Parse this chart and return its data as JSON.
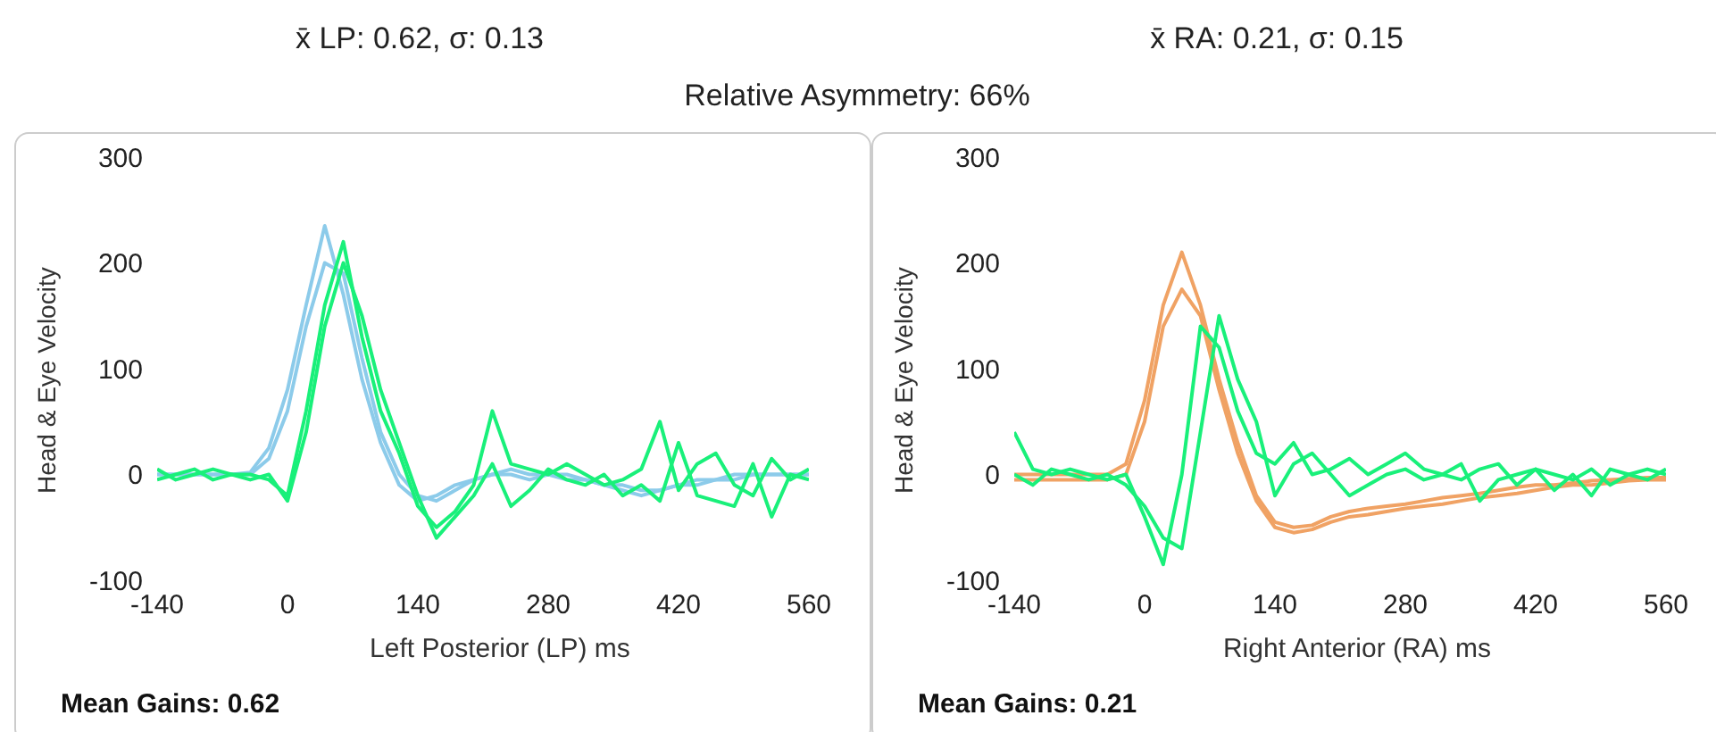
{
  "chart_data": [
    {
      "type": "line",
      "title": "x̄ LP: 0.62, σ: 0.13",
      "xlabel": "Left Posterior (LP) ms",
      "ylabel": "Head & Eye Velocity",
      "annotations": [
        "Relative Asymmetry: 66%",
        "Mean Gains: 0.62"
      ],
      "marker": "none",
      "line_style": "solid",
      "x": [
        -140,
        -120,
        -100,
        -80,
        -60,
        -40,
        -20,
        0,
        20,
        40,
        60,
        80,
        100,
        120,
        140,
        160,
        180,
        200,
        220,
        240,
        260,
        280,
        300,
        320,
        340,
        360,
        380,
        400,
        420,
        440,
        460,
        480,
        500,
        520,
        540,
        560
      ],
      "xlim": [
        -140,
        560
      ],
      "xticks": [
        -140,
        0,
        140,
        280,
        420,
        560
      ],
      "ylim": [
        -100,
        300
      ],
      "yticks": [
        -100,
        0,
        100,
        200,
        300
      ],
      "series": [
        {
          "color": "#8ccbea",
          "values": [
            0,
            0,
            0,
            0,
            0,
            2,
            25,
            80,
            160,
            235,
            170,
            90,
            30,
            -10,
            -25,
            -20,
            -10,
            -5,
            0,
            0,
            -5,
            0,
            0,
            -5,
            -10,
            -10,
            -15,
            -15,
            -10,
            -10,
            -5,
            -5,
            0,
            0,
            0,
            0
          ]
        },
        {
          "color": "#8ccbea",
          "values": [
            0,
            0,
            0,
            0,
            0,
            0,
            15,
            60,
            140,
            200,
            190,
            110,
            40,
            0,
            -20,
            -25,
            -15,
            -5,
            0,
            5,
            0,
            0,
            -5,
            -5,
            -10,
            -15,
            -20,
            -15,
            -10,
            -5,
            -5,
            0,
            0,
            0,
            0,
            0
          ]
        },
        {
          "color": "#19f07a",
          "values": [
            5,
            -5,
            0,
            5,
            0,
            0,
            -5,
            -20,
            60,
            160,
            220,
            130,
            60,
            20,
            -30,
            -50,
            -35,
            -10,
            60,
            10,
            5,
            0,
            10,
            0,
            -10,
            -5,
            5,
            50,
            -15,
            10,
            20,
            -10,
            -20,
            15,
            -5,
            5
          ]
        },
        {
          "color": "#19f07a",
          "values": [
            -5,
            0,
            5,
            -5,
            0,
            -5,
            0,
            -25,
            40,
            140,
            200,
            150,
            80,
            30,
            -20,
            -60,
            -40,
            -20,
            10,
            -30,
            -15,
            5,
            -5,
            -10,
            0,
            -20,
            -10,
            -25,
            30,
            -20,
            -25,
            -30,
            10,
            -40,
            0,
            -5
          ]
        }
      ]
    },
    {
      "type": "line",
      "title": "x̄ RA: 0.21, σ: 0.15",
      "xlabel": "Right Anterior (RA) ms",
      "ylabel": "Head & Eye Velocity",
      "annotations": [
        "Mean Gains: 0.21"
      ],
      "marker": "none",
      "line_style": "solid",
      "x": [
        -140,
        -120,
        -100,
        -80,
        -60,
        -40,
        -20,
        0,
        20,
        40,
        60,
        80,
        100,
        120,
        140,
        160,
        180,
        200,
        220,
        240,
        260,
        280,
        300,
        320,
        340,
        360,
        380,
        400,
        420,
        440,
        460,
        480,
        500,
        520,
        540,
        560
      ],
      "xlim": [
        -140,
        560
      ],
      "xticks": [
        -140,
        0,
        140,
        280,
        420,
        560
      ],
      "ylim": [
        -100,
        300
      ],
      "yticks": [
        -100,
        0,
        100,
        200,
        300
      ],
      "series": [
        {
          "color": "#f0a264",
          "values": [
            0,
            0,
            0,
            0,
            0,
            0,
            10,
            70,
            160,
            210,
            160,
            90,
            30,
            -20,
            -45,
            -50,
            -48,
            -40,
            -35,
            -32,
            -30,
            -28,
            -25,
            -22,
            -20,
            -18,
            -15,
            -12,
            -10,
            -10,
            -8,
            -6,
            -5,
            -4,
            -3,
            -3
          ]
        },
        {
          "color": "#f0a264",
          "values": [
            -5,
            -5,
            -5,
            -5,
            -5,
            -5,
            0,
            50,
            140,
            175,
            150,
            80,
            20,
            -25,
            -50,
            -55,
            -52,
            -45,
            -40,
            -38,
            -35,
            -32,
            -30,
            -28,
            -25,
            -22,
            -20,
            -18,
            -15,
            -12,
            -10,
            -10,
            -8,
            -6,
            -5,
            -5
          ]
        },
        {
          "color": "#19f07a",
          "values": [
            40,
            5,
            0,
            5,
            0,
            -5,
            0,
            -40,
            -85,
            0,
            140,
            120,
            60,
            20,
            10,
            30,
            0,
            5,
            15,
            0,
            10,
            20,
            5,
            0,
            -5,
            5,
            10,
            -10,
            5,
            0,
            -5,
            5,
            -10,
            0,
            -5,
            5
          ]
        },
        {
          "color": "#19f07a",
          "values": [
            0,
            -10,
            5,
            0,
            -5,
            0,
            -10,
            -30,
            -60,
            -70,
            40,
            150,
            90,
            50,
            -20,
            10,
            20,
            0,
            -20,
            -10,
            0,
            5,
            -5,
            0,
            10,
            -25,
            -5,
            0,
            5,
            -15,
            0,
            -20,
            5,
            0,
            5,
            0
          ]
        }
      ]
    }
  ]
}
